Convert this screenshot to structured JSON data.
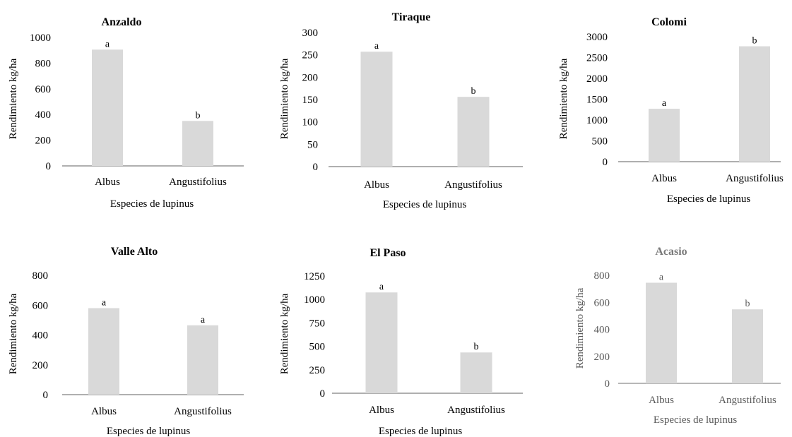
{
  "charts": [
    {
      "type": "bar",
      "title": "Anzaldo",
      "xlabel": "Especies de lupinus",
      "ylabel": "Rendimiento kg/ha",
      "categories": [
        "Albus",
        "Angustifolius"
      ],
      "values": [
        905,
        350
      ],
      "letters": [
        "a",
        "b"
      ],
      "ylim": [
        0,
        1000
      ],
      "yticks": [
        0,
        200,
        400,
        600,
        800,
        1000
      ],
      "bar_color": "#d9d9d9",
      "grid": false,
      "legend": "none"
    },
    {
      "type": "bar",
      "title": "Tiraque",
      "xlabel": "Especies de lupinus",
      "ylabel": "Rendimiento kg/ha",
      "categories": [
        "Albus",
        "Angustifolius"
      ],
      "values": [
        257,
        156
      ],
      "letters": [
        "a",
        "b"
      ],
      "ylim": [
        0,
        300
      ],
      "yticks": [
        0,
        50,
        100,
        150,
        200,
        250,
        300
      ],
      "bar_color": "#d9d9d9",
      "grid": false,
      "legend": "none"
    },
    {
      "type": "bar",
      "title": "Colomi",
      "xlabel": "Especies de lupinus",
      "ylabel": "Rendimiento kg/ha",
      "categories": [
        "Albus",
        "Angustifolius"
      ],
      "values": [
        1270,
        2770
      ],
      "letters": [
        "a",
        "b"
      ],
      "ylim": [
        0,
        3000
      ],
      "yticks": [
        0,
        500,
        1000,
        1500,
        2000,
        2500,
        3000
      ],
      "bar_color": "#d9d9d9",
      "grid": false,
      "legend": "none"
    },
    {
      "type": "bar",
      "title": "Valle Alto",
      "xlabel": "Especies de lupinus",
      "ylabel": "Rendimiento kg/ha",
      "categories": [
        "Albus",
        "Angustifolius"
      ],
      "values": [
        580,
        465
      ],
      "letters": [
        "a",
        "a"
      ],
      "ylim": [
        0,
        800
      ],
      "yticks": [
        0,
        200,
        400,
        600,
        800
      ],
      "bar_color": "#d9d9d9",
      "grid": false,
      "legend": "none"
    },
    {
      "type": "bar",
      "title": "El Paso",
      "xlabel": "Especies de lupinus",
      "ylabel": "Rendimiento kg/ha",
      "categories": [
        "Albus",
        "Angustifolius"
      ],
      "values": [
        1075,
        435
      ],
      "letters": [
        "a",
        "b"
      ],
      "ylim": [
        0,
        1250
      ],
      "yticks": [
        0,
        250,
        500,
        750,
        1000,
        1250
      ],
      "bar_color": "#d9d9d9",
      "grid": false,
      "legend": "none"
    },
    {
      "type": "bar",
      "title": "Acasio",
      "xlabel": "Especies de lupinus",
      "ylabel": "Rendimiento kg/ha",
      "categories": [
        "Albus",
        "Angustifolius"
      ],
      "values": [
        745,
        548
      ],
      "letters": [
        "a",
        "b"
      ],
      "ylim": [
        0,
        800
      ],
      "yticks": [
        0,
        200,
        400,
        600,
        800
      ],
      "bar_color": "#d9d9d9",
      "grid": false,
      "legend": "none"
    }
  ]
}
